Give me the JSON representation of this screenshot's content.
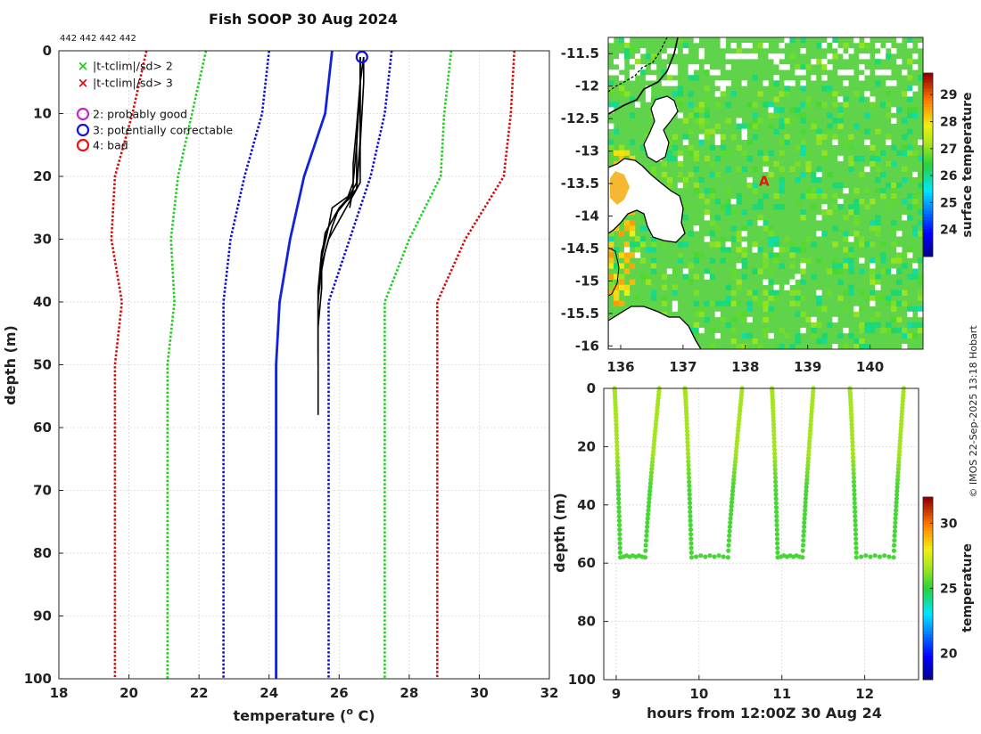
{
  "copyright": "© IMOS 22-Sep-2025 13:18 Hobart",
  "chart_data": [
    {
      "id": "profile",
      "type": "line",
      "title": "Fish SOOP 30 Aug 2024",
      "header_note": "442 442 442 442",
      "xlabel_main": "temperature (",
      "xlabel_sup": "o",
      "xlabel_end": " C)",
      "ylabel": "depth (m)",
      "xlim": [
        18,
        32
      ],
      "ylim": [
        0,
        100
      ],
      "xticks": [
        "18",
        "20",
        "22",
        "24",
        "26",
        "28",
        "30",
        "32"
      ],
      "yticks": [
        "0",
        "10",
        "20",
        "30",
        "40",
        "50",
        "60",
        "70",
        "80",
        "90",
        "100"
      ],
      "legend": [
        {
          "marker": "x",
          "color": "#22cc22",
          "label": "|t-tclim|/sd> 2"
        },
        {
          "marker": "x",
          "color": "#dd1111",
          "label": "|t-tclim|/sd> 3"
        },
        {
          "marker": "o",
          "color": "#cc22cc",
          "label": "2: probably good"
        },
        {
          "marker": "o",
          "color": "#1111dd",
          "label": "3: potentially correctable"
        },
        {
          "marker": "o",
          "color": "#ee1111",
          "label": "4: bad"
        }
      ],
      "climatology": {
        "temps": [
          25.8,
          25.6,
          25.0,
          24.6,
          24.3,
          24.2,
          24.2
        ],
        "depths": [
          0,
          10,
          20,
          30,
          40,
          50,
          100
        ]
      },
      "sd_lines": [
        {
          "name": "-3 sd",
          "color": "#cc1111",
          "temps": [
            20.5,
            20.1,
            19.6,
            19.5,
            19.8,
            19.6,
            19.6
          ],
          "depths": [
            0,
            10,
            20,
            30,
            40,
            50,
            100
          ]
        },
        {
          "name": "-2 sd",
          "color": "#22cc22",
          "temps": [
            22.2,
            21.8,
            21.4,
            21.2,
            21.3,
            21.1,
            21.1
          ],
          "depths": [
            0,
            10,
            20,
            30,
            40,
            50,
            100
          ]
        },
        {
          "name": "-1 sd",
          "color": "#1111cc",
          "temps": [
            24.0,
            23.8,
            23.3,
            22.9,
            22.7,
            22.7,
            22.7
          ],
          "depths": [
            0,
            10,
            20,
            30,
            40,
            50,
            100
          ]
        },
        {
          "name": "+1 sd",
          "color": "#1111cc",
          "temps": [
            27.5,
            27.3,
            26.9,
            26.3,
            25.7,
            25.7,
            25.7
          ],
          "depths": [
            0,
            10,
            20,
            30,
            40,
            50,
            100
          ]
        },
        {
          "name": "+2 sd",
          "color": "#22cc22",
          "temps": [
            29.2,
            29.0,
            28.9,
            28.0,
            27.3,
            27.3,
            27.3
          ],
          "depths": [
            0,
            10,
            20,
            30,
            40,
            50,
            100
          ]
        },
        {
          "name": "+3 sd",
          "color": "#cc1111",
          "temps": [
            31.0,
            30.9,
            30.7,
            29.6,
            28.8,
            28.8,
            28.8
          ],
          "depths": [
            0,
            10,
            20,
            30,
            40,
            50,
            100
          ]
        }
      ],
      "casts": [
        {
          "temps": [
            26.6,
            26.6,
            26.5,
            26.5,
            26.3,
            25.8,
            25.7,
            25.5,
            25.4,
            25.4,
            25.4,
            25.4
          ],
          "depths": [
            1,
            5,
            15,
            21,
            23,
            25,
            28,
            32,
            38,
            45,
            52,
            58
          ]
        },
        {
          "temps": [
            26.7,
            26.7,
            26.6,
            26.6,
            26.4,
            26.0,
            25.8,
            25.6,
            25.4,
            25.4,
            25.4
          ],
          "depths": [
            1,
            5,
            15,
            21,
            23,
            25,
            28,
            32,
            38,
            45,
            50
          ]
        },
        {
          "temps": [
            26.6,
            26.6,
            26.5,
            26.4,
            26.2,
            25.9,
            25.6,
            25.5,
            25.5,
            25.4
          ],
          "depths": [
            1,
            5,
            15,
            21,
            24,
            26,
            29,
            33,
            38,
            44
          ]
        },
        {
          "temps": [
            26.7,
            26.6,
            26.6,
            26.5,
            26.3,
            26.1,
            25.7,
            25.5,
            25.4,
            25.4
          ],
          "depths": [
            1,
            5,
            15,
            22,
            24,
            26,
            30,
            34,
            40,
            48
          ]
        },
        {
          "temps": [
            26.6,
            26.6,
            26.5,
            26.4,
            26.4,
            26.3
          ],
          "depths": [
            1,
            5,
            12,
            18,
            22,
            25
          ]
        },
        {
          "temps": [
            26.7,
            26.6,
            26.6,
            26.5,
            26.0,
            25.7,
            25.5,
            25.5
          ],
          "depths": [
            1,
            5,
            14,
            22,
            25,
            28,
            33,
            38
          ]
        }
      ],
      "flag_marker": {
        "temp": 26.65,
        "depth": 1,
        "color": "#1111dd"
      }
    },
    {
      "id": "sst_map",
      "type": "heatmap",
      "xticks": [
        "136",
        "137",
        "138",
        "139",
        "140"
      ],
      "yticks": [
        "-11.5",
        "-12",
        "-12.5",
        "-13",
        "-13.5",
        "-14",
        "-14.5",
        "-15",
        "-15.5",
        "-16"
      ],
      "xlim": [
        135.8,
        140.85
      ],
      "ylim": [
        -16.05,
        -11.25
      ],
      "colorbar_label": "surface temperature",
      "colorbar_range": [
        23.0,
        29.8
      ],
      "colorbar_ticks": [
        "24",
        "25",
        "26",
        "27",
        "28",
        "29"
      ],
      "station_marker": {
        "label": "A",
        "lon": 138.3,
        "lat": -13.45,
        "color": "#ee1111"
      }
    },
    {
      "id": "time_depth",
      "type": "scatter",
      "xlabel": "hours from 12:00Z 30 Aug 24",
      "ylabel": "depth (m)",
      "xlim": [
        8.85,
        12.65
      ],
      "ylim": [
        0,
        100
      ],
      "xticks": [
        "9",
        "10",
        "11",
        "12"
      ],
      "yticks": [
        "0",
        "20",
        "40",
        "60",
        "80",
        "100"
      ],
      "colorbar_label": "temperature",
      "colorbar_range": [
        18.0,
        32.0
      ],
      "colorbar_ticks": [
        "20",
        "25",
        "30"
      ],
      "yoyos": [
        {
          "t_start": 8.98,
          "t_bottom_start": 9.05,
          "t_bottom_end": 9.35,
          "t_end": 9.52,
          "bottom": 58
        },
        {
          "t_start": 9.83,
          "t_bottom_start": 9.91,
          "t_bottom_end": 10.35,
          "t_end": 10.52,
          "bottom": 58
        },
        {
          "t_start": 10.88,
          "t_bottom_start": 10.95,
          "t_bottom_end": 11.25,
          "t_end": 11.38,
          "bottom": 58
        },
        {
          "t_start": 11.82,
          "t_bottom_start": 11.9,
          "t_bottom_end": 12.35,
          "t_end": 12.47,
          "bottom": 58
        }
      ]
    }
  ]
}
